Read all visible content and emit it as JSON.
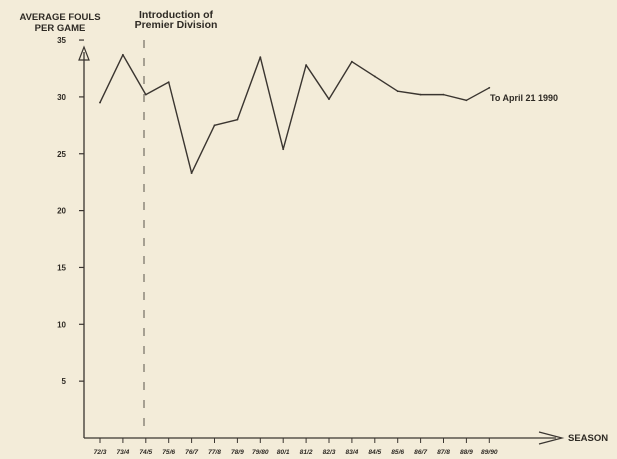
{
  "chart_data": {
    "type": "line",
    "ylabel_lines": [
      "AVERAGE FOULS",
      "PER GAME"
    ],
    "xlabel": "SEASON",
    "categories": [
      "72/3",
      "73/4",
      "74/5",
      "75/6",
      "76/7",
      "77/8",
      "78/9",
      "79/80",
      "80/1",
      "81/2",
      "82/3",
      "83/4",
      "84/5",
      "85/6",
      "86/7",
      "87/8",
      "88/9",
      "89/90"
    ],
    "series": [
      {
        "values": [
          29.5,
          33.7,
          30.2,
          31.3,
          23.3,
          27.5,
          28.0,
          33.5,
          25.4,
          32.8,
          29.8,
          33.1,
          31.8,
          30.5,
          30.2,
          30.2,
          29.7,
          30.8
        ]
      }
    ],
    "ylim": [
      0,
      35
    ],
    "yticks": [
      5,
      10,
      15,
      20,
      25,
      30,
      35
    ],
    "grid": false,
    "line_color": "#3a3530",
    "annotations": [
      {
        "id": "premier",
        "lines": [
          "Introduction of",
          "Premier Division"
        ],
        "x_category": "74/5"
      },
      {
        "id": "to-april",
        "text": "To April 21 1990",
        "x_category": "89/90",
        "value": 30.8
      }
    ]
  }
}
